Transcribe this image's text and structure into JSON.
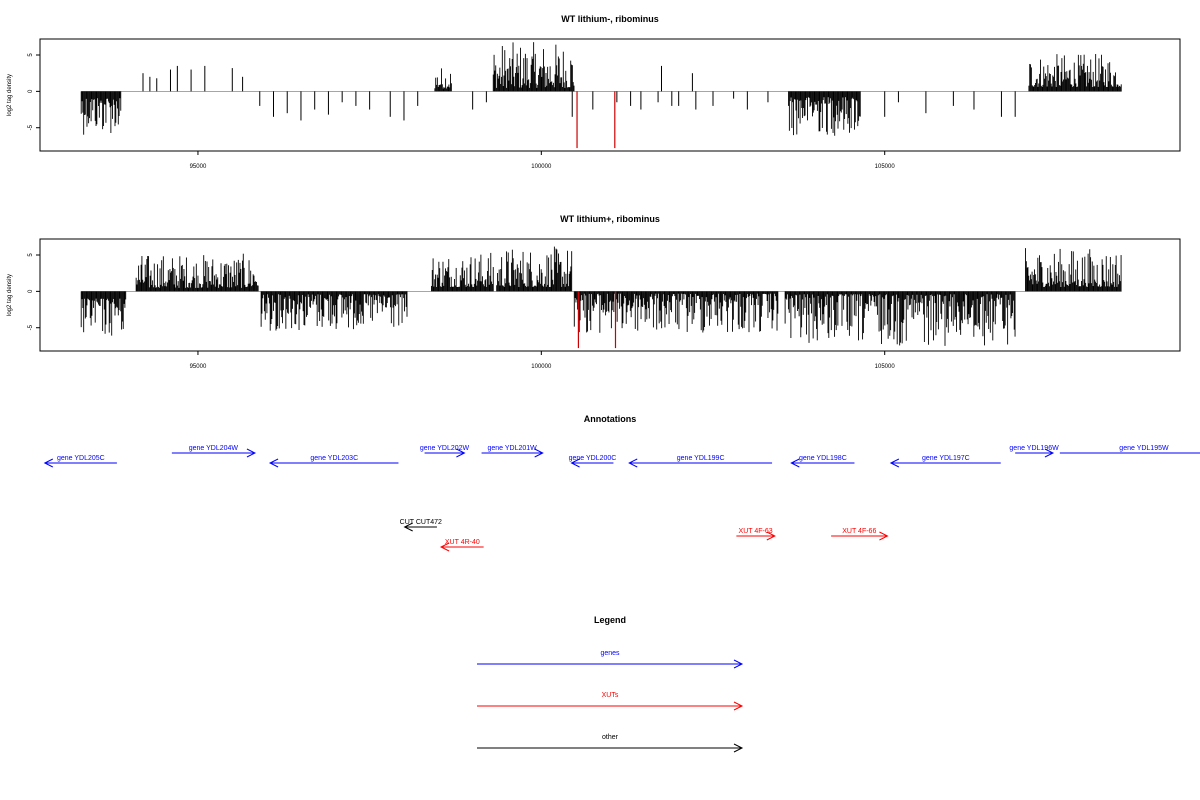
{
  "chart_data": [
    {
      "type": "bar",
      "title": "WT lithium-, ribominus",
      "ylabel": "log2 tag density",
      "xlim": [
        92700,
        109300
      ],
      "ylim": [
        -8.2,
        7.2
      ],
      "x_ticks": [
        95000,
        100000,
        105000
      ],
      "y_ticks": [
        -5,
        0,
        5
      ],
      "highlight_color": "#cc0000",
      "dense_segments": [
        {
          "from": 93300,
          "to": 93880,
          "min": -6.0,
          "max": -2.2
        },
        {
          "from": 98450,
          "to": 98700,
          "min": 1.0,
          "max": 3.5
        },
        {
          "from": 99300,
          "to": 100480,
          "min": 1.2,
          "max": 6.8
        },
        {
          "from": 103600,
          "to": 104650,
          "min": -6.2,
          "max": -2.0
        },
        {
          "from": 107100,
          "to": 108450,
          "min": 1.5,
          "max": 5.2
        }
      ],
      "sparse_bars": [
        [
          94200,
          2.5
        ],
        [
          94300,
          2.0
        ],
        [
          94400,
          1.8
        ],
        [
          94600,
          3.0
        ],
        [
          94700,
          3.5
        ],
        [
          94900,
          3.0
        ],
        [
          95100,
          3.5
        ],
        [
          95500,
          3.2
        ],
        [
          95650,
          2.0
        ],
        [
          95900,
          -2.0
        ],
        [
          96100,
          -3.5
        ],
        [
          96300,
          -3.0
        ],
        [
          96500,
          -4.0
        ],
        [
          96700,
          -2.5
        ],
        [
          96900,
          -3.2
        ],
        [
          97100,
          -1.5
        ],
        [
          97300,
          -2.0
        ],
        [
          97500,
          -2.5
        ],
        [
          97800,
          -3.5
        ],
        [
          98000,
          -4.0
        ],
        [
          98200,
          -2.0
        ],
        [
          99000,
          -2.5
        ],
        [
          99200,
          -1.5
        ],
        [
          100450,
          -3.5
        ],
        [
          100750,
          -2.5
        ],
        [
          101100,
          -1.5
        ],
        [
          101300,
          -2.0
        ],
        [
          101450,
          -2.5
        ],
        [
          101700,
          -1.5
        ],
        [
          101750,
          3.5
        ],
        [
          101900,
          -2.0
        ],
        [
          102000,
          -2.0
        ],
        [
          102200,
          2.5
        ],
        [
          102250,
          -2.5
        ],
        [
          102500,
          -2.0
        ],
        [
          102800,
          -1.0
        ],
        [
          103000,
          -2.5
        ],
        [
          103300,
          -1.5
        ],
        [
          105000,
          -3.5
        ],
        [
          105200,
          -1.5
        ],
        [
          105600,
          -3.0
        ],
        [
          106000,
          -2.0
        ],
        [
          106300,
          -2.5
        ],
        [
          106700,
          -3.5
        ],
        [
          106900,
          -3.5
        ]
      ],
      "red_bars": [
        [
          100520,
          -7.8
        ],
        [
          101070,
          -7.8
        ]
      ]
    },
    {
      "type": "bar",
      "title": "WT lithium+, ribominus",
      "ylabel": "log2 tag density",
      "xlim": [
        92700,
        109300
      ],
      "ylim": [
        -8.2,
        7.2
      ],
      "x_ticks": [
        95000,
        100000,
        105000
      ],
      "y_ticks": [
        -5,
        0,
        5
      ],
      "highlight_color": "#cc0000",
      "dense_segments": [
        {
          "from": 93300,
          "to": 93950,
          "min": -6.5,
          "max": -2.5
        },
        {
          "from": 94100,
          "to": 95880,
          "min": 1.2,
          "max": 5.2
        },
        {
          "from": 95920,
          "to": 98050,
          "min": -5.5,
          "max": -1.0
        },
        {
          "from": 98400,
          "to": 99300,
          "min": 1.5,
          "max": 5.5
        },
        {
          "from": 99350,
          "to": 100450,
          "min": 1.5,
          "max": 6.2
        },
        {
          "from": 100480,
          "to": 103450,
          "min": -6.0,
          "max": -0.8
        },
        {
          "from": 103550,
          "to": 106900,
          "min": -7.5,
          "max": -1.0
        },
        {
          "from": 107050,
          "to": 108450,
          "min": 1.5,
          "max": 6.0
        }
      ],
      "sparse_bars": [],
      "red_bars": [
        [
          100540,
          -7.8
        ],
        [
          101080,
          -7.8
        ]
      ]
    }
  ],
  "annotations": {
    "title": "Annotations",
    "xlim": [
      92700,
      109300
    ],
    "features": [
      {
        "label": "gene YDL205C",
        "start": 92770,
        "end": 93820,
        "strand": "-",
        "type": "gene",
        "row": 0
      },
      {
        "label": "gene YDL204W",
        "start": 94620,
        "end": 95830,
        "strand": "+",
        "type": "gene",
        "row": 1
      },
      {
        "label": "gene YDL203C",
        "start": 96050,
        "end": 97920,
        "strand": "-",
        "type": "gene",
        "row": 0
      },
      {
        "label": "gene YDL202W",
        "start": 98300,
        "end": 98880,
        "strand": "+",
        "type": "gene",
        "row": 1
      },
      {
        "label": "gene YDL201W",
        "start": 99130,
        "end": 100020,
        "strand": "+",
        "type": "gene",
        "row": 1
      },
      {
        "label": "gene YDL200C",
        "start": 100440,
        "end": 101050,
        "strand": "-",
        "type": "gene",
        "row": 0
      },
      {
        "label": "gene YDL199C",
        "start": 101280,
        "end": 103360,
        "strand": "-",
        "type": "gene",
        "row": 0
      },
      {
        "label": "gene YDL198C",
        "start": 103640,
        "end": 104560,
        "strand": "-",
        "type": "gene",
        "row": 0
      },
      {
        "label": "gene YDL197C",
        "start": 105090,
        "end": 106690,
        "strand": "-",
        "type": "gene",
        "row": 0
      },
      {
        "label": "gene YDL196W",
        "start": 106900,
        "end": 107450,
        "strand": "+",
        "type": "gene",
        "row": 1
      },
      {
        "label": "gene YDL195W",
        "start": 107550,
        "end": 110000,
        "strand": "+",
        "type": "gene",
        "row": 1
      },
      {
        "label": "CUT CUT472",
        "start": 98010,
        "end": 98480,
        "strand": "-",
        "type": "other",
        "row": 2
      },
      {
        "label": "XUT 4R-40",
        "start": 98540,
        "end": 99160,
        "strand": "-",
        "type": "xut",
        "row": 3
      },
      {
        "label": "XUT 4F-63",
        "start": 102840,
        "end": 103400,
        "strand": "+",
        "type": "xut",
        "row": 4
      },
      {
        "label": "XUT 4F-66",
        "start": 104220,
        "end": 105040,
        "strand": "+",
        "type": "xut",
        "row": 4
      }
    ]
  },
  "legend": {
    "title": "Legend",
    "items": [
      {
        "label": "genes",
        "color": "#0000ff"
      },
      {
        "label": "XUTs",
        "color": "#ff0000"
      },
      {
        "label": "other",
        "color": "#000000"
      }
    ]
  },
  "colors": {
    "gene": "#0000ff",
    "xut": "#ff0000",
    "other": "#000000"
  }
}
